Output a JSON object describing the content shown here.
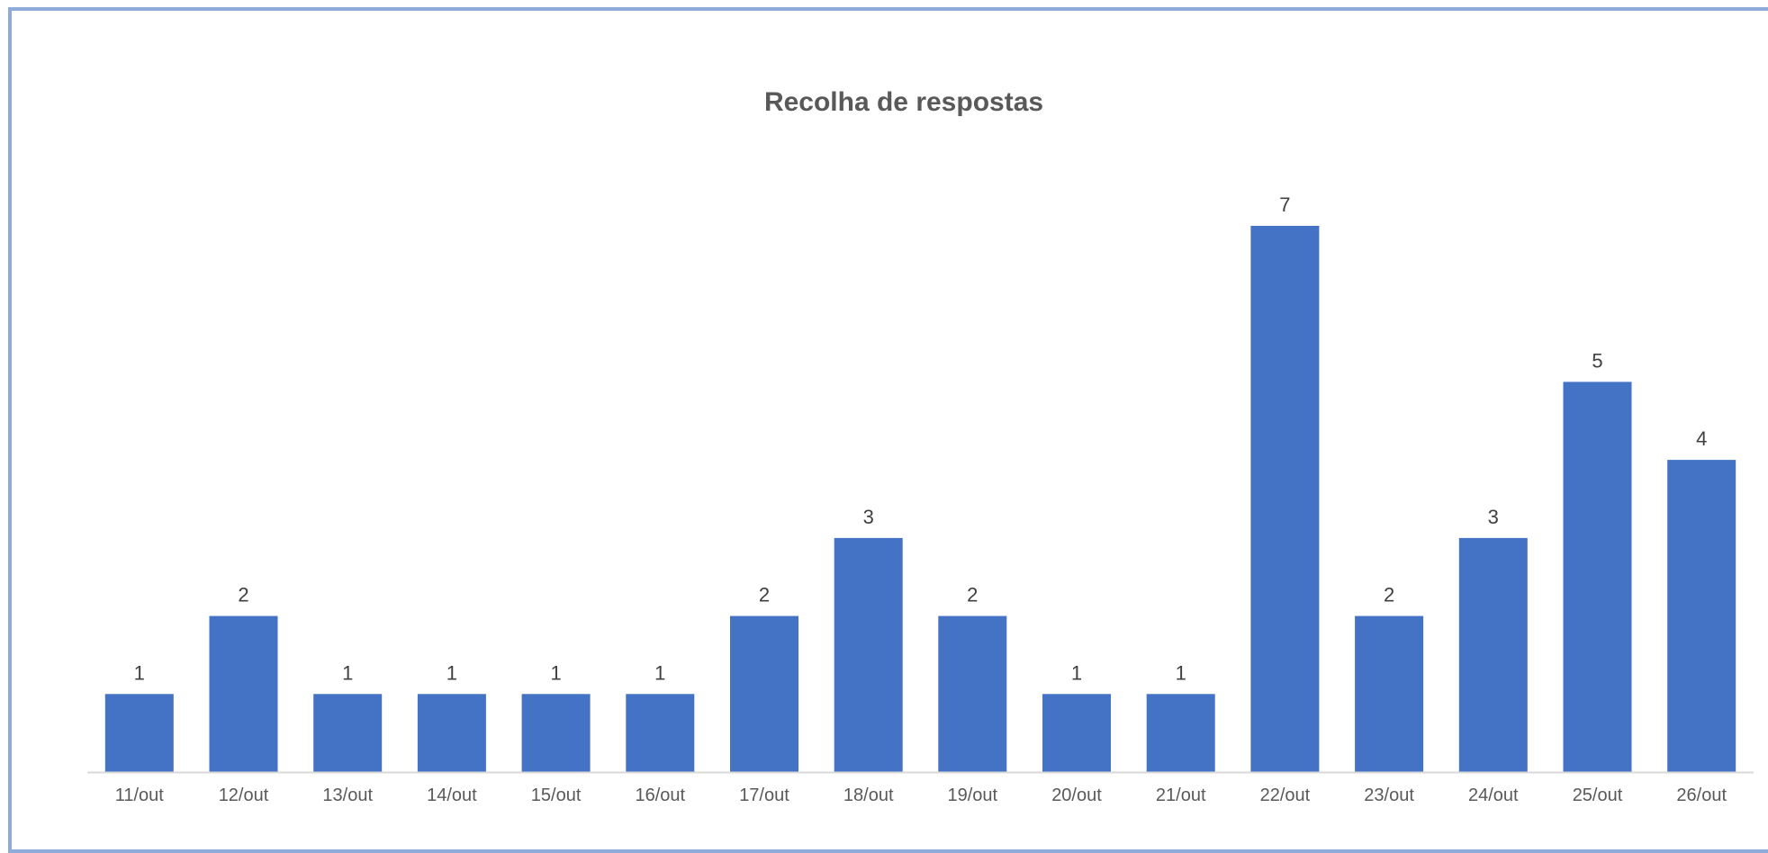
{
  "chart_data": {
    "type": "bar",
    "title": "Recolha de respostas",
    "xlabel": "",
    "ylabel": "",
    "categories": [
      "11/out",
      "12/out",
      "13/out",
      "14/out",
      "15/out",
      "16/out",
      "17/out",
      "18/out",
      "19/out",
      "20/out",
      "21/out",
      "22/out",
      "23/out",
      "24/out",
      "25/out",
      "26/out"
    ],
    "values": [
      1,
      2,
      1,
      1,
      1,
      1,
      2,
      3,
      2,
      1,
      1,
      7,
      2,
      3,
      5,
      4
    ],
    "ylim": [
      0,
      7
    ],
    "grid": false,
    "legend": "none",
    "data_labels": true,
    "colors": {
      "bar": "#4472c4",
      "axis": "#d9d9d9",
      "frame": "#8eabd9",
      "title": "#595959",
      "label": "#404040",
      "tick": "#595959"
    }
  }
}
